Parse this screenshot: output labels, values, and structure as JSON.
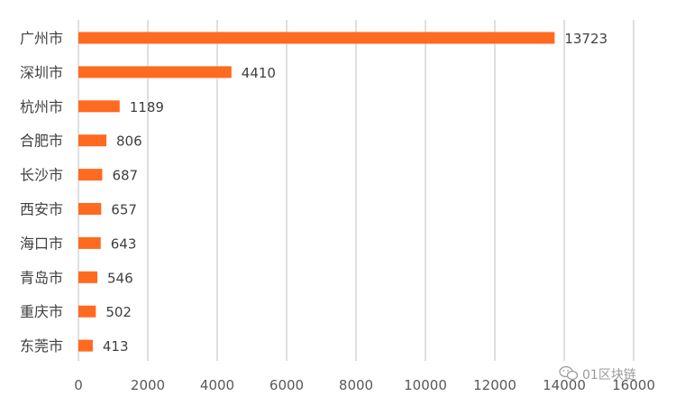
{
  "chart_data": {
    "type": "bar",
    "orientation": "horizontal",
    "title": "",
    "xlabel": "",
    "ylabel": "",
    "categories": [
      "广州市",
      "深圳市",
      "杭州市",
      "合肥市",
      "长沙市",
      "西安市",
      "海口市",
      "青岛市",
      "重庆市",
      "东莞市"
    ],
    "values": [
      13723,
      4410,
      1189,
      806,
      687,
      657,
      643,
      546,
      502,
      413
    ],
    "xlim": [
      0,
      16000
    ],
    "xticks": [
      0,
      2000,
      4000,
      6000,
      8000,
      10000,
      12000,
      14000,
      16000
    ],
    "grid": true,
    "legend": "none",
    "bar_color": "#FF6A21",
    "grid_color": "#BFBFBF"
  },
  "watermark": {
    "text": "01区块链",
    "icon": "wechat-icon"
  }
}
